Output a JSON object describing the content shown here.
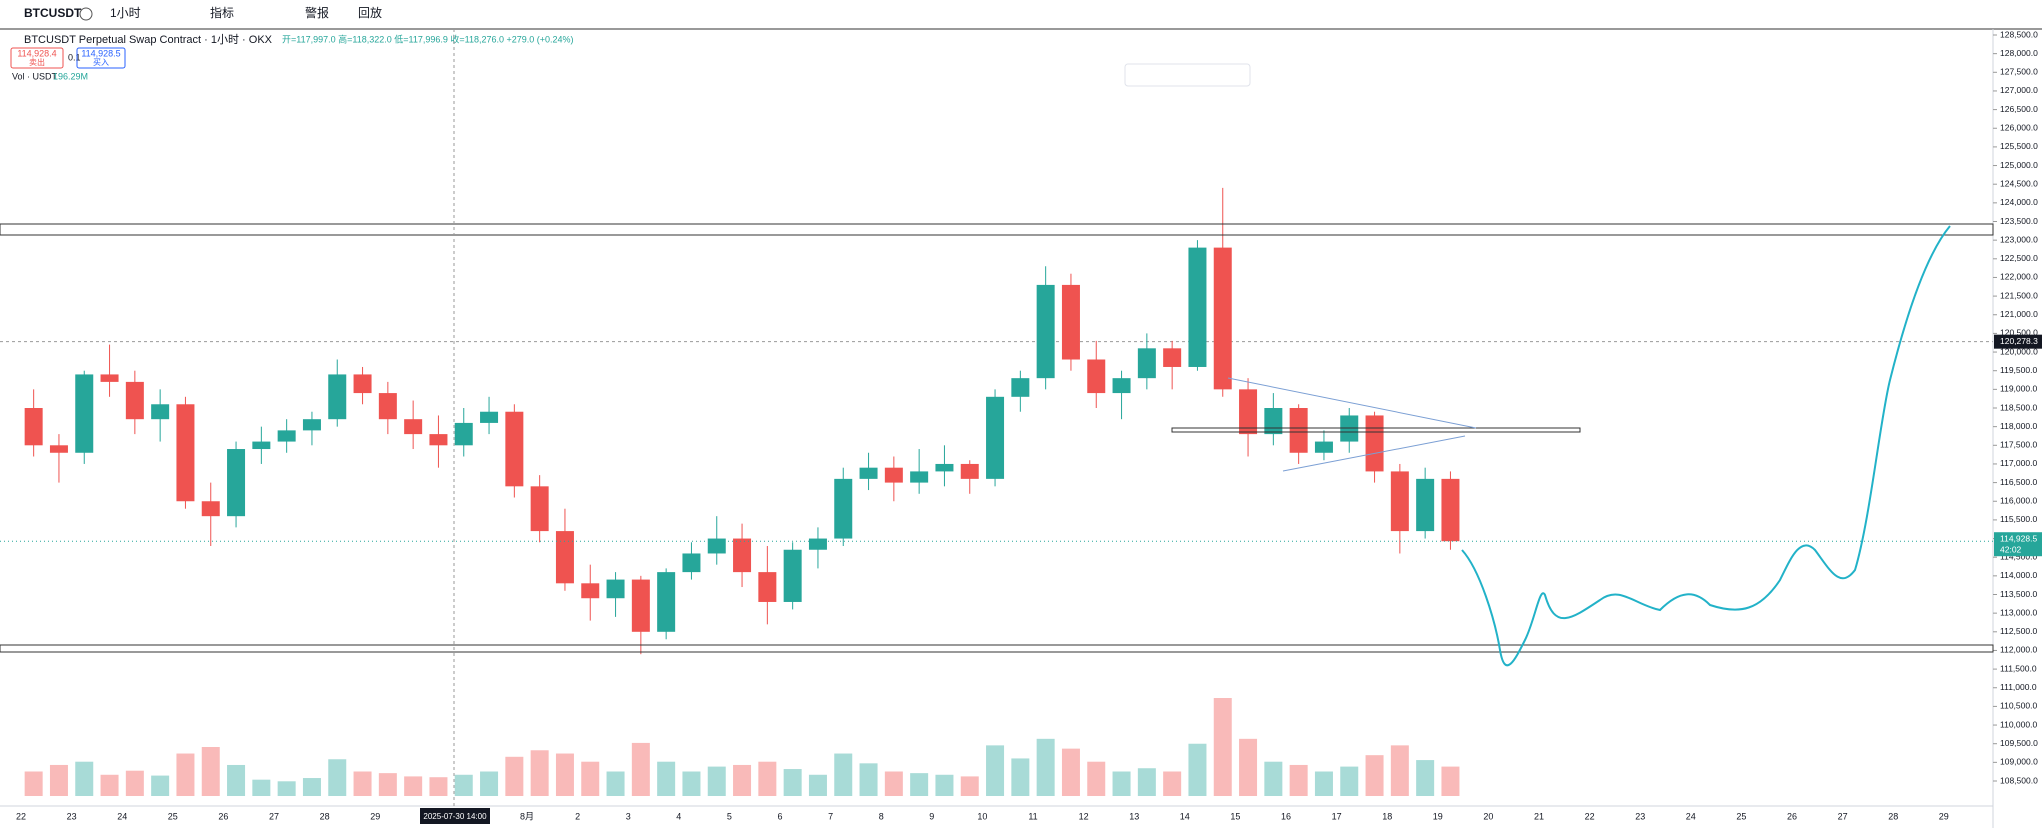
{
  "toolbar": {
    "symbol": "BTCUSDT",
    "interval": "1小时",
    "indicators": "指标",
    "alert": "警报",
    "replay": "回放"
  },
  "header": {
    "title": "BTCUSDT Perpetual Swap Contract · 1小时 · OKX",
    "ohlc": "开=117,997.0 高=118,322.0 低=117,996.9 收=118,276.0 +279.0 (+0.24%)",
    "sell_price": "114,928.4",
    "sell": "卖出",
    "qty": "0.1",
    "buy_price": "114,928.5",
    "buy": "买入",
    "vol_label": "Vol · USDT",
    "vol_value": "196.29M"
  },
  "chart_data": {
    "type": "candlestick",
    "up_color": "#26a69a",
    "down_color": "#ef5350",
    "x_labels": [
      "22",
      "23",
      "24",
      "25",
      "26",
      "27",
      "28",
      "29",
      null,
      null,
      "8月",
      "2",
      "3",
      "4",
      "5",
      "6",
      "7",
      "8",
      "9",
      "10",
      "11",
      "12",
      "13",
      "14",
      "15",
      "16",
      "17",
      "18",
      "19",
      "20",
      "21",
      "22",
      "23",
      "24",
      "25",
      "26",
      "27",
      "28",
      "29"
    ],
    "crosshair_label": "2025-07-30  14:00",
    "ylim": [
      108000,
      128800
    ],
    "yticks": [
      {
        "value": 128500,
        "label": "128,500.0"
      },
      {
        "value": 128000,
        "label": "128,000.0"
      },
      {
        "value": 127500,
        "label": "127,500.0"
      },
      {
        "value": 127000,
        "label": "127,000.0"
      },
      {
        "value": 126500,
        "label": "126,500.0"
      },
      {
        "value": 126000,
        "label": "126,000.0"
      },
      {
        "value": 125500,
        "label": "125,500.0"
      },
      {
        "value": 125000,
        "label": "125,000.0"
      },
      {
        "value": 124500,
        "label": "124,500.0"
      },
      {
        "value": 124000,
        "label": "124,000.0"
      },
      {
        "value": 123500,
        "label": "123,500.0"
      },
      {
        "value": 123000,
        "label": "123,000.0"
      },
      {
        "value": 122500,
        "label": "122,500.0"
      },
      {
        "value": 122000,
        "label": "122,000.0"
      },
      {
        "value": 121500,
        "label": "121,500.0"
      },
      {
        "value": 121000,
        "label": "121,000.0"
      },
      {
        "value": 120500,
        "label": "120,500.0"
      },
      {
        "value": 120000,
        "label": "120,000.0"
      },
      {
        "value": 119500,
        "label": "119,500.0"
      },
      {
        "value": 119000,
        "label": "119,000.0"
      },
      {
        "value": 118500,
        "label": "118,500.0"
      },
      {
        "value": 118000,
        "label": "118,000.0"
      },
      {
        "value": 117500,
        "label": "117,500.0"
      },
      {
        "value": 117000,
        "label": "117,000.0"
      },
      {
        "value": 116500,
        "label": "116,500.0"
      },
      {
        "value": 116000,
        "label": "116,000.0"
      },
      {
        "value": 115500,
        "label": "115,500.0"
      },
      {
        "value": 115000,
        "label": "115,000.0"
      },
      {
        "value": 114500,
        "label": "114,500.0"
      },
      {
        "value": 114000,
        "label": "114,000.0"
      },
      {
        "value": 113500,
        "label": "113,500.0"
      },
      {
        "value": 113000,
        "label": "113,000.0"
      },
      {
        "value": 112500,
        "label": "112,500.0"
      },
      {
        "value": 112000,
        "label": "112,000.0"
      },
      {
        "value": 111500,
        "label": "111,500.0"
      },
      {
        "value": 111000,
        "label": "111,000.0"
      },
      {
        "value": 110500,
        "label": "110,500.0"
      },
      {
        "value": 110000,
        "label": "110,000.0"
      },
      {
        "value": 109500,
        "label": "109,500.0"
      },
      {
        "value": 109000,
        "label": "109,000.0"
      },
      {
        "value": 108500,
        "label": "108,500.0"
      }
    ],
    "marker_price": {
      "value": 120278.3,
      "label": "120,278.3"
    },
    "last_price": {
      "value": 114928.5,
      "label": "114,928.5",
      "countdown": "42:02"
    },
    "candles": [
      [
        118500,
        119000,
        117200,
        117500
      ],
      [
        117500,
        117800,
        116500,
        117300
      ],
      [
        117300,
        119500,
        117000,
        119400
      ],
      [
        119400,
        120200,
        118800,
        119200
      ],
      [
        119200,
        119500,
        117800,
        118200
      ],
      [
        118200,
        119000,
        117600,
        118600
      ],
      [
        118600,
        118800,
        115800,
        116000
      ],
      [
        116000,
        116500,
        114800,
        115600
      ],
      [
        115600,
        117600,
        115300,
        117400
      ],
      [
        117400,
        118000,
        117000,
        117600
      ],
      [
        117600,
        118200,
        117300,
        117900
      ],
      [
        117900,
        118400,
        117500,
        118200
      ],
      [
        118200,
        119800,
        118000,
        119400
      ],
      [
        119400,
        119600,
        118600,
        118900
      ],
      [
        118900,
        119200,
        117800,
        118200
      ],
      [
        118200,
        118700,
        117400,
        117800
      ],
      [
        117800,
        118300,
        116900,
        117500
      ],
      [
        117500,
        118500,
        117200,
        118100
      ],
      [
        118100,
        118800,
        117800,
        118400
      ],
      [
        118400,
        118600,
        116100,
        116400
      ],
      [
        116400,
        116700,
        114900,
        115200
      ],
      [
        115200,
        115800,
        113600,
        113800
      ],
      [
        113800,
        114300,
        112800,
        113400
      ],
      [
        113400,
        114100,
        112900,
        113900
      ],
      [
        113900,
        114000,
        111900,
        112500
      ],
      [
        112500,
        114200,
        112300,
        114100
      ],
      [
        114100,
        114900,
        113900,
        114600
      ],
      [
        114600,
        115600,
        114300,
        115000
      ],
      [
        115000,
        115400,
        113700,
        114100
      ],
      [
        114100,
        114800,
        112700,
        113300
      ],
      [
        113300,
        114900,
        113100,
        114700
      ],
      [
        114700,
        115300,
        114200,
        115000
      ],
      [
        115000,
        116900,
        114800,
        116600
      ],
      [
        116600,
        117300,
        116300,
        116900
      ],
      [
        116900,
        117200,
        116000,
        116500
      ],
      [
        116500,
        117400,
        116200,
        116800
      ],
      [
        116800,
        117500,
        116400,
        117000
      ],
      [
        117000,
        117100,
        116200,
        116600
      ],
      [
        116600,
        119000,
        116400,
        118800
      ],
      [
        118800,
        119500,
        118400,
        119300
      ],
      [
        119300,
        122300,
        119000,
        121800
      ],
      [
        121800,
        122100,
        119500,
        119800
      ],
      [
        119800,
        120300,
        118500,
        118900
      ],
      [
        118900,
        119500,
        118200,
        119300
      ],
      [
        119300,
        120500,
        119000,
        120100
      ],
      [
        120100,
        120300,
        119000,
        119600
      ],
      [
        119600,
        123000,
        119500,
        122800
      ],
      [
        122800,
        124400,
        118800,
        119000
      ],
      [
        119000,
        119300,
        117200,
        117800
      ],
      [
        117800,
        118900,
        117500,
        118500
      ],
      [
        118500,
        118600,
        117000,
        117300
      ],
      [
        117300,
        117900,
        117100,
        117600
      ],
      [
        117600,
        118500,
        117300,
        118300
      ],
      [
        118300,
        118400,
        116500,
        116800
      ],
      [
        116800,
        117000,
        114600,
        115200
      ],
      [
        115200,
        116900,
        115000,
        116600
      ],
      [
        116600,
        116800,
        114700,
        114928.5
      ]
    ],
    "volumes": [
      300,
      380,
      420,
      260,
      310,
      250,
      520,
      600,
      380,
      200,
      180,
      220,
      450,
      300,
      280,
      240,
      230,
      260,
      300,
      480,
      560,
      520,
      420,
      300,
      650,
      420,
      300,
      360,
      380,
      420,
      330,
      260,
      520,
      400,
      300,
      280,
      260,
      240,
      620,
      460,
      700,
      580,
      420,
      300,
      340,
      300,
      640,
      1200,
      700,
      420,
      380,
      300,
      360,
      500,
      620,
      440,
      360
    ]
  }
}
